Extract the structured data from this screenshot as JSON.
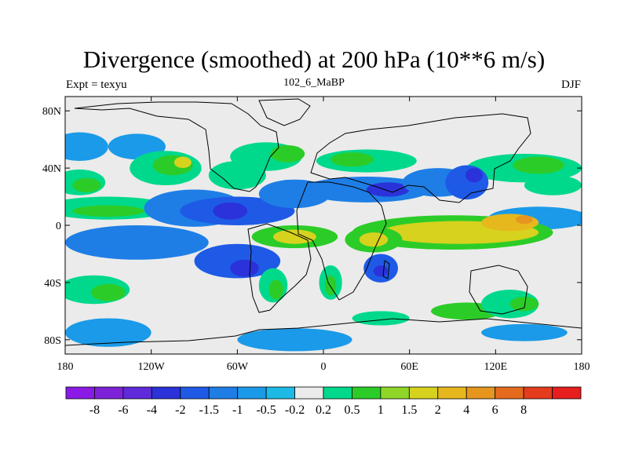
{
  "title": "Divergence (smoothed) at 200 hPa (10**6 m/s)",
  "left_string": "Expt = texyu",
  "center_string": "102_6_MaBP",
  "right_string": "DJF",
  "map": {
    "projection": "cylindrical-equidistant",
    "lon_range": [
      -180,
      180
    ],
    "lat_range": [
      -90,
      90
    ],
    "lat_ticks": [
      {
        "value": 80,
        "label": "80N"
      },
      {
        "value": 40,
        "label": "40N"
      },
      {
        "value": 0,
        "label": "0"
      },
      {
        "value": -40,
        "label": "40S"
      },
      {
        "value": -80,
        "label": "80S"
      }
    ],
    "lon_ticks": [
      {
        "value": -180,
        "label": "180"
      },
      {
        "value": -120,
        "label": "120W"
      },
      {
        "value": -60,
        "label": "60W"
      },
      {
        "value": 0,
        "label": "0"
      },
      {
        "value": 60,
        "label": "60E"
      },
      {
        "value": 120,
        "label": "120E"
      },
      {
        "value": 180,
        "label": "180"
      }
    ],
    "background_color": "#ebebeb",
    "coastline_color": "#000000"
  },
  "colorbar": {
    "colors": [
      "#8c1ae6",
      "#7d22d8",
      "#5f2ad9",
      "#2b32d9",
      "#1e5ae6",
      "#1e7ee6",
      "#1a9ae8",
      "#1ebae6",
      "#ebebeb",
      "#00d98c",
      "#2ccc28",
      "#8fd628",
      "#d6d21e",
      "#e6b81e",
      "#e6961e",
      "#e66a1e",
      "#e63c1e",
      "#e61e1e"
    ],
    "labels": [
      "-8",
      "-6",
      "-4",
      "-2",
      "-1.5",
      "-1",
      "-0.5",
      "-0.2",
      "0.2",
      "0.5",
      "1",
      "1.5",
      "2",
      "4",
      "6",
      "8"
    ]
  },
  "field_blobs": [
    {
      "lon": -170,
      "lat": 55,
      "rx": 20,
      "ry": 10,
      "level": -0.5
    },
    {
      "lon": -130,
      "lat": 55,
      "rx": 20,
      "ry": 9,
      "level": -0.5
    },
    {
      "lon": -170,
      "lat": 30,
      "rx": 18,
      "ry": 9,
      "level": 0.5
    },
    {
      "lon": -165,
      "lat": 28,
      "rx": 10,
      "ry": 5,
      "level": 1
    },
    {
      "lon": -110,
      "lat": 40,
      "rx": 25,
      "ry": 12,
      "level": 0.5
    },
    {
      "lon": -105,
      "lat": 42,
      "rx": 14,
      "ry": 7,
      "level": 1
    },
    {
      "lon": -98,
      "lat": 44,
      "rx": 6,
      "ry": 4,
      "level": 2
    },
    {
      "lon": -60,
      "lat": 35,
      "rx": 20,
      "ry": 10,
      "level": 0.5
    },
    {
      "lon": -40,
      "lat": 48,
      "rx": 25,
      "ry": 10,
      "level": 0.5
    },
    {
      "lon": -25,
      "lat": 50,
      "rx": 12,
      "ry": 6,
      "level": 1
    },
    {
      "lon": 30,
      "lat": 45,
      "rx": 35,
      "ry": 8,
      "level": 0.5
    },
    {
      "lon": 20,
      "lat": 46,
      "rx": 15,
      "ry": 5,
      "level": 1
    },
    {
      "lon": 140,
      "lat": 40,
      "rx": 40,
      "ry": 10,
      "level": 0.5
    },
    {
      "lon": 150,
      "lat": 42,
      "rx": 18,
      "ry": 6,
      "level": 1
    },
    {
      "lon": 160,
      "lat": 28,
      "rx": 20,
      "ry": 7,
      "level": 0.5
    },
    {
      "lon": -150,
      "lat": 12,
      "rx": 45,
      "ry": 8,
      "level": 0.5
    },
    {
      "lon": -150,
      "lat": 10,
      "rx": 25,
      "ry": 4,
      "level": 1
    },
    {
      "lon": -90,
      "lat": 12,
      "rx": 35,
      "ry": 13,
      "level": -1
    },
    {
      "lon": -60,
      "lat": 10,
      "rx": 40,
      "ry": 10,
      "level": -1.5
    },
    {
      "lon": -65,
      "lat": 10,
      "rx": 12,
      "ry": 6,
      "level": -2
    },
    {
      "lon": -20,
      "lat": 22,
      "rx": 25,
      "ry": 10,
      "level": -1
    },
    {
      "lon": 30,
      "lat": 25,
      "rx": 45,
      "ry": 9,
      "level": -1
    },
    {
      "lon": 45,
      "lat": 25,
      "rx": 15,
      "ry": 5,
      "level": -2
    },
    {
      "lon": 80,
      "lat": 30,
      "rx": 25,
      "ry": 10,
      "level": -1
    },
    {
      "lon": 100,
      "lat": 30,
      "rx": 15,
      "ry": 12,
      "level": -1.5
    },
    {
      "lon": 105,
      "lat": 35,
      "rx": 6,
      "ry": 5,
      "level": -2
    },
    {
      "lon": 150,
      "lat": 5,
      "rx": 35,
      "ry": 8,
      "level": -0.5
    },
    {
      "lon": 90,
      "lat": -5,
      "rx": 70,
      "ry": 12,
      "level": 1
    },
    {
      "lon": 95,
      "lat": -5,
      "rx": 55,
      "ry": 8,
      "level": 2
    },
    {
      "lon": 130,
      "lat": 2,
      "rx": 20,
      "ry": 6,
      "level": 4
    },
    {
      "lon": 140,
      "lat": 4,
      "rx": 6,
      "ry": 3,
      "level": 6
    },
    {
      "lon": -20,
      "lat": -8,
      "rx": 30,
      "ry": 8,
      "level": 1
    },
    {
      "lon": -20,
      "lat": -8,
      "rx": 15,
      "ry": 5,
      "level": 2
    },
    {
      "lon": 35,
      "lat": -10,
      "rx": 20,
      "ry": 9,
      "level": 1
    },
    {
      "lon": 35,
      "lat": -10,
      "rx": 10,
      "ry": 5,
      "level": 2
    },
    {
      "lon": -130,
      "lat": -12,
      "rx": 50,
      "ry": 12,
      "level": -1
    },
    {
      "lon": -60,
      "lat": -25,
      "rx": 30,
      "ry": 12,
      "level": -1.5
    },
    {
      "lon": -55,
      "lat": -30,
      "rx": 10,
      "ry": 6,
      "level": -2
    },
    {
      "lon": 40,
      "lat": -30,
      "rx": 12,
      "ry": 10,
      "level": -1.5
    },
    {
      "lon": 40,
      "lat": -32,
      "rx": 5,
      "ry": 4,
      "level": -2
    },
    {
      "lon": -160,
      "lat": -45,
      "rx": 25,
      "ry": 10,
      "level": 0.5
    },
    {
      "lon": -150,
      "lat": -47,
      "rx": 12,
      "ry": 6,
      "level": 1
    },
    {
      "lon": -35,
      "lat": -42,
      "rx": 10,
      "ry": 12,
      "level": 0.5
    },
    {
      "lon": -33,
      "lat": -45,
      "rx": 5,
      "ry": 7,
      "level": 1
    },
    {
      "lon": 5,
      "lat": -40,
      "rx": 8,
      "ry": 12,
      "level": 0.5
    },
    {
      "lon": 5,
      "lat": -42,
      "rx": 4,
      "ry": 7,
      "level": 1
    },
    {
      "lon": 40,
      "lat": -65,
      "rx": 20,
      "ry": 5,
      "level": 0.5
    },
    {
      "lon": 100,
      "lat": -60,
      "rx": 25,
      "ry": 6,
      "level": 1
    },
    {
      "lon": 130,
      "lat": -55,
      "rx": 20,
      "ry": 10,
      "level": 0.5
    },
    {
      "lon": 140,
      "lat": -55,
      "rx": 10,
      "ry": 5,
      "level": 1
    },
    {
      "lon": -150,
      "lat": -75,
      "rx": 30,
      "ry": 10,
      "level": -0.5
    },
    {
      "lon": -20,
      "lat": -80,
      "rx": 40,
      "ry": 8,
      "level": -0.5
    },
    {
      "lon": 140,
      "lat": -75,
      "rx": 30,
      "ry": 6,
      "level": -0.5
    }
  ]
}
